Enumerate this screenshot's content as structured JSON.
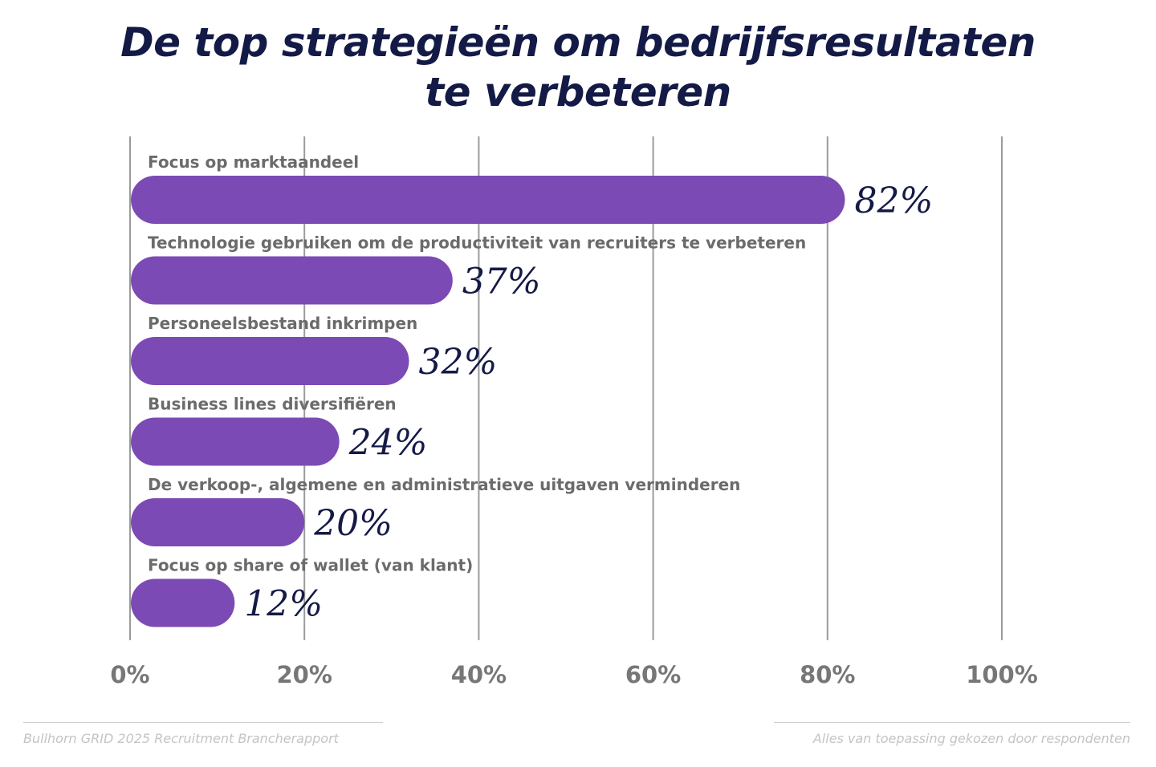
{
  "chart_data": {
    "type": "bar",
    "orientation": "horizontal",
    "title": "De top strategieën om bedrijfsresultaten te verbeteren",
    "title_lines": [
      "De top strategieën om bedrijfsresultaten",
      "te verbeteren"
    ],
    "categories": [
      "Focus op marktaandeel",
      "Technologie gebruiken om de productiviteit van recruiters te verbeteren",
      "Personeelsbestand inkrimpen",
      "Business lines diversifiëren",
      "De verkoop-, algemene en administratieve uitgaven verminderen",
      "Focus op share of wallet (van klant)"
    ],
    "values": [
      82,
      37,
      32,
      24,
      20,
      12
    ],
    "value_labels": [
      "82%",
      "37%",
      "32%",
      "24%",
      "20%",
      "12%"
    ],
    "xlim": [
      0,
      100
    ],
    "x_ticks": [
      0,
      20,
      40,
      60,
      80,
      100
    ],
    "x_tick_labels": [
      "0%",
      "20%",
      "40%",
      "60%",
      "80%",
      "100%"
    ],
    "grid": true,
    "legend": "none",
    "colors": {
      "bar": "#7c4ab5",
      "title": "#141a46",
      "value_label": "#141a46",
      "category_label": "#6b6b6b",
      "tick_label": "#777777",
      "grid": "#9b9b9b"
    }
  },
  "footer": {
    "source": "Bullhorn GRID 2025 Recruitment Brancherapport",
    "note": "Alles van toepassing gekozen door respondenten"
  }
}
